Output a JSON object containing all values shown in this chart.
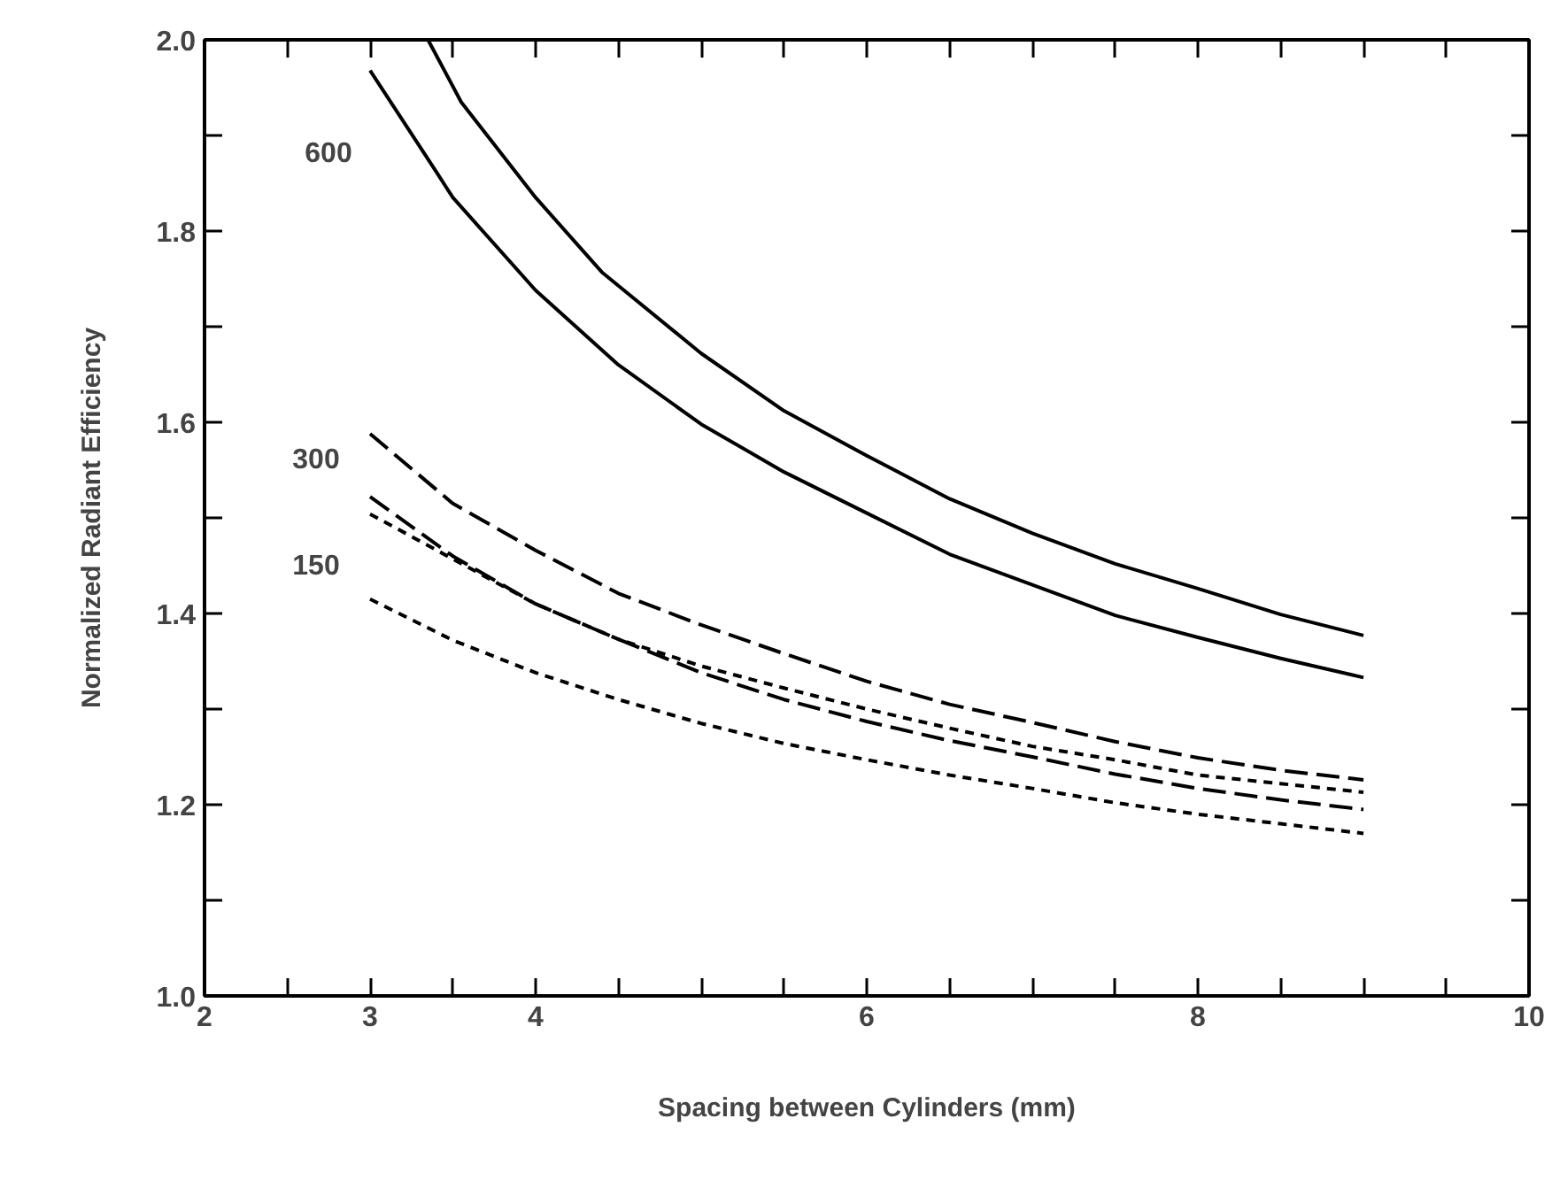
{
  "chart_data": {
    "type": "line",
    "xlabel": "Spacing between Cylinders (mm)",
    "ylabel": "Normalized Radiant Efficiency",
    "xlim": [
      2,
      10
    ],
    "ylim": [
      1.0,
      2.0
    ],
    "xticks": [
      2,
      {
        "value": 2.5,
        "label": null
      },
      3,
      {
        "value": 3.5,
        "label": null
      },
      4,
      {
        "value": 4.5,
        "label": null
      },
      6,
      {
        "value": 5,
        "label": null
      },
      {
        "value": 5.5,
        "label": null
      },
      {
        "value": 6.5,
        "label": null
      },
      {
        "value": 7,
        "label": null
      },
      {
        "value": 7.5,
        "label": null
      },
      8,
      {
        "value": 8.5,
        "label": null
      },
      {
        "value": 9,
        "label": null
      },
      {
        "value": 9.5,
        "label": null
      },
      10
    ],
    "yticks": [
      {
        "value": 1.0,
        "label": "1.0"
      },
      {
        "value": 1.1,
        "label": null
      },
      {
        "value": 1.2,
        "label": "1.2"
      },
      {
        "value": 1.3,
        "label": null
      },
      {
        "value": 1.4,
        "label": "1.4"
      },
      {
        "value": 1.5,
        "label": null
      },
      {
        "value": 1.6,
        "label": "1.6"
      },
      {
        "value": 1.7,
        "label": null
      },
      {
        "value": 1.8,
        "label": "1.8"
      },
      {
        "value": 1.9,
        "label": null
      },
      {
        "value": 2.0,
        "label": "2.0"
      }
    ],
    "grid": false,
    "marker": "none",
    "series": [
      {
        "color": "#000000",
        "line_style": "solid",
        "x": [
          3.35,
          3.55,
          4,
          4.4,
          5,
          5.5,
          6,
          6.5,
          7,
          7.5,
          8,
          8.5,
          9
        ],
        "values": [
          2.0,
          1.935,
          1.835,
          1.757,
          1.672,
          1.612,
          1.565,
          1.52,
          1.484,
          1.452,
          1.426,
          1.399,
          1.377
        ]
      },
      {
        "color": "#000000",
        "line_style": "solid",
        "x": [
          3,
          3.4,
          3.5,
          4,
          4.5,
          5,
          5.5,
          6,
          6.5,
          7,
          7.5,
          8,
          8.5,
          9
        ],
        "values": [
          1.968,
          1.862,
          1.835,
          1.738,
          1.66,
          1.598,
          1.548,
          1.505,
          1.462,
          1.43,
          1.398,
          1.375,
          1.353,
          1.333
        ]
      },
      {
        "color": "#000000",
        "line_style": "dashed",
        "x": [
          3,
          3.5,
          4,
          4.5,
          5,
          5.5,
          6,
          6.5,
          7,
          7.5,
          8,
          8.5,
          9
        ],
        "values": [
          1.588,
          1.515,
          1.466,
          1.421,
          1.388,
          1.358,
          1.329,
          1.305,
          1.286,
          1.266,
          1.249,
          1.236,
          1.226
        ]
      },
      {
        "color": "#000000",
        "line_style": "dashed",
        "x": [
          3,
          3.5,
          4,
          4.5,
          5,
          5.5,
          6,
          6.5,
          7,
          7.5,
          8,
          8.5,
          9
        ],
        "values": [
          1.522,
          1.46,
          1.41,
          1.373,
          1.338,
          1.31,
          1.287,
          1.267,
          1.25,
          1.232,
          1.217,
          1.205,
          1.195
        ]
      },
      {
        "color": "#000000",
        "line_style": "dotted",
        "x": [
          3,
          3.5,
          4,
          4.5,
          5,
          5.5,
          6,
          6.5,
          7,
          7.5,
          8,
          8.5,
          9
        ],
        "values": [
          1.504,
          1.457,
          1.41,
          1.373,
          1.345,
          1.322,
          1.3,
          1.28,
          1.261,
          1.247,
          1.231,
          1.222,
          1.213
        ]
      },
      {
        "color": "#000000",
        "line_style": "dotted",
        "x": [
          3,
          3.5,
          4,
          4.5,
          5,
          5.5,
          6,
          6.5,
          7,
          7.5,
          8,
          8.5,
          9
        ],
        "values": [
          1.415,
          1.372,
          1.338,
          1.31,
          1.285,
          1.264,
          1.247,
          1.231,
          1.217,
          1.202,
          1.19,
          1.18,
          1.17
        ]
      }
    ],
    "annotations": [
      "600",
      "300",
      "150"
    ]
  }
}
